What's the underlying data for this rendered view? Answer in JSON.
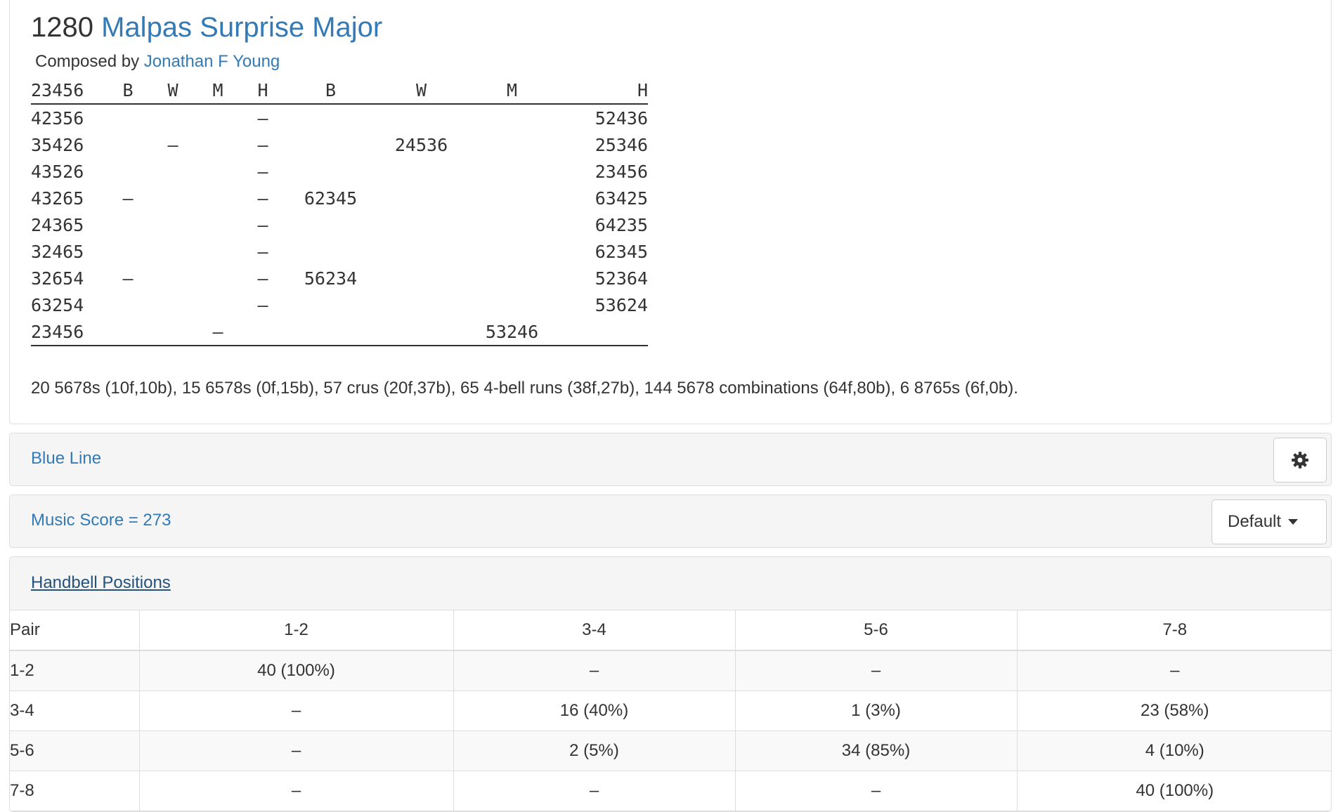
{
  "composition": {
    "length": "1280",
    "method": "Malpas Surprise Major",
    "composed_by_label": "Composed by",
    "composer": "Jonathan F Young",
    "columns": [
      "23456",
      "B",
      "W",
      "M",
      "H",
      "B",
      "W",
      "M",
      "H"
    ],
    "rows": [
      [
        "42356",
        "",
        "",
        "",
        "–",
        "",
        "",
        "",
        "52436"
      ],
      [
        "35426",
        "",
        "–",
        "",
        "–",
        "",
        "24536",
        "",
        "25346"
      ],
      [
        "43526",
        "",
        "",
        "",
        "–",
        "",
        "",
        "",
        "23456"
      ],
      [
        "43265",
        "–",
        "",
        "",
        "–",
        "62345",
        "",
        "",
        "63425"
      ],
      [
        "24365",
        "",
        "",
        "",
        "–",
        "",
        "",
        "",
        "64235"
      ],
      [
        "32465",
        "",
        "",
        "",
        "–",
        "",
        "",
        "",
        "62345"
      ],
      [
        "32654",
        "–",
        "",
        "",
        "–",
        "56234",
        "",
        "",
        "52364"
      ],
      [
        "63254",
        "",
        "",
        "",
        "–",
        "",
        "",
        "",
        "53624"
      ],
      [
        "23456",
        "",
        "",
        "–",
        "",
        "",
        "",
        "53246",
        ""
      ]
    ],
    "summary": "20 5678s (10f,10b), 15 6578s (0f,15b), 57 crus (20f,37b), 65 4-bell runs (38f,27b), 144 5678 combinations (64f,80b), 6 8765s (6f,0b)."
  },
  "blue_line": {
    "label": "Blue Line",
    "settings_icon": "gear-icon"
  },
  "music": {
    "label": "Music Score = 273",
    "dropdown_value": "Default"
  },
  "handbell": {
    "title": "Handbell Positions",
    "headers": [
      "Pair",
      "1-2",
      "3-4",
      "5-6",
      "7-8"
    ],
    "rows": [
      [
        "1-2",
        "40 (100%)",
        "–",
        "–",
        "–"
      ],
      [
        "3-4",
        "–",
        "16 (40%)",
        "1 (3%)",
        "23 (58%)"
      ],
      [
        "5-6",
        "–",
        "2 (5%)",
        "34 (85%)",
        "4 (10%)"
      ],
      [
        "7-8",
        "–",
        "–",
        "–",
        "40 (100%)"
      ]
    ]
  }
}
